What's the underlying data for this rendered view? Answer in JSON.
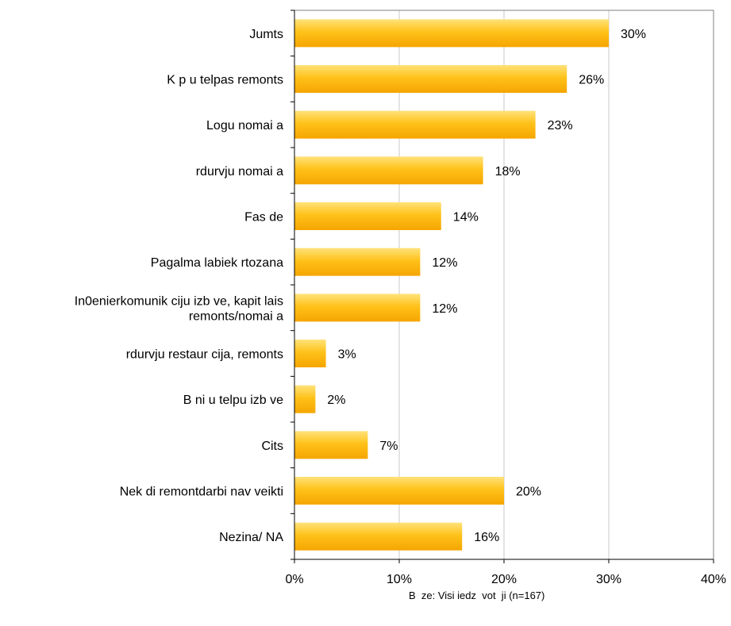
{
  "chart_data": {
    "type": "bar",
    "orientation": "horizontal",
    "categories": [
      [
        "Jumts"
      ],
      [
        "K  p  u telpas remonts"
      ],
      [
        "Logu nomai  a"
      ],
      [
        "  rdurvju nomai  a"
      ],
      [
        "Fas  de"
      ],
      [
        "Pagalma labiek  rtozana"
      ],
      [
        "In0enierkomunik  ciju izb  ve, kapit  lais",
        "remonts/nomai  a"
      ],
      [
        "  rdurvju restaur  cija, remonts"
      ],
      [
        "B  ni  u telpu izb  ve"
      ],
      [
        "Cits"
      ],
      [
        "Nek  di remontdarbi nav veikti"
      ],
      [
        "Nezina/ NA"
      ]
    ],
    "values": [
      30,
      26,
      23,
      18,
      14,
      12,
      12,
      3,
      2,
      7,
      20,
      16
    ],
    "value_labels": [
      "30%",
      "26%",
      "23%",
      "18%",
      "14%",
      "12%",
      "12%",
      "3%",
      "2%",
      "7%",
      "20%",
      "16%"
    ],
    "xlim": [
      0,
      40
    ],
    "x_ticks": [
      0,
      10,
      20,
      30,
      40
    ],
    "x_tick_labels": [
      "0%",
      "10%",
      "20%",
      "30%",
      "40%"
    ],
    "grid": "vertical",
    "bar_color_light": "#ffe27a",
    "bar_color_dark": "#f5a500",
    "title": "",
    "xlabel": "",
    "ylabel": ""
  },
  "footnote": "B  ze: Visi iedz  vot  ji (n=167)"
}
